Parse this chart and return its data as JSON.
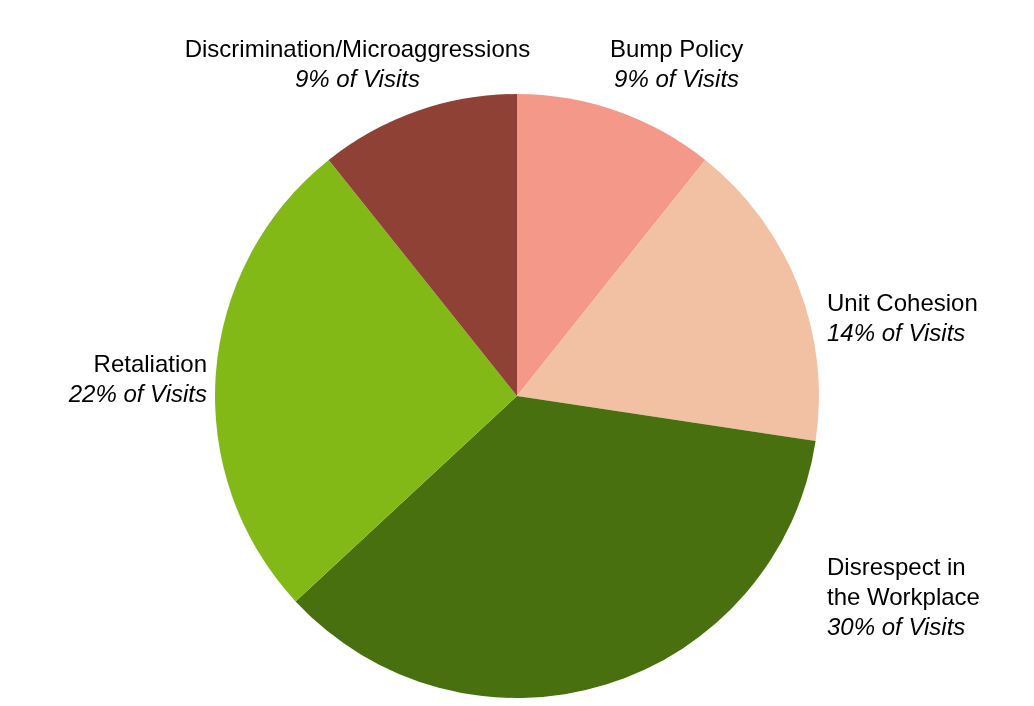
{
  "chart_data": {
    "type": "pie",
    "categories": [
      "Bump Policy",
      "Unit Cohesion",
      "Disrespect in\nthe Workplace",
      "Retaliation",
      "Discrimination/Microaggressions"
    ],
    "values": [
      9,
      14,
      30,
      22,
      9
    ],
    "colors": [
      "#f4998a",
      "#f2c0a2",
      "#48700f",
      "#82b916",
      "#8f4135"
    ],
    "value_labels": [
      "9% of Visits",
      "14% of Visits",
      "30% of Visits",
      "22% of Visits",
      "9% of Visits"
    ]
  }
}
